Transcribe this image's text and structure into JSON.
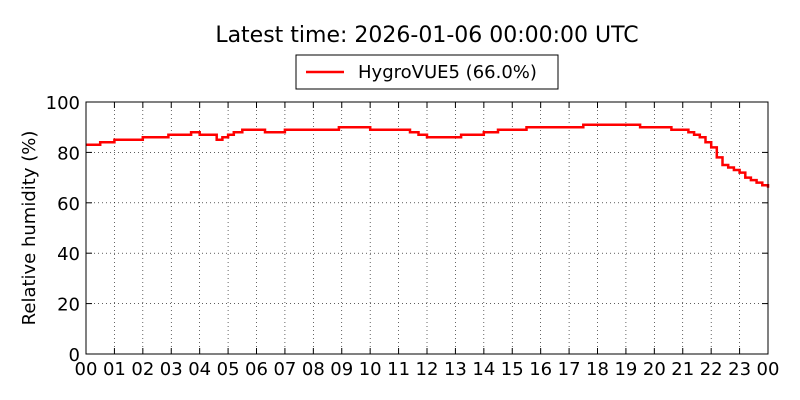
{
  "chart_data": {
    "type": "line",
    "title": "Latest time: 2026-01-06 00:00:00 UTC",
    "xlabel": "",
    "ylabel": "Relative humidity (%)",
    "xlim": [
      0,
      24
    ],
    "ylim": [
      0,
      100
    ],
    "grid": true,
    "legend_position": "top-center",
    "x_ticks": [
      0,
      1,
      2,
      3,
      4,
      5,
      6,
      7,
      8,
      9,
      10,
      11,
      12,
      13,
      14,
      15,
      16,
      17,
      18,
      19,
      20,
      21,
      22,
      23,
      24
    ],
    "x_tick_labels": [
      "00",
      "01",
      "02",
      "03",
      "04",
      "05",
      "06",
      "07",
      "08",
      "09",
      "10",
      "11",
      "12",
      "13",
      "14",
      "15",
      "16",
      "17",
      "18",
      "19",
      "20",
      "21",
      "22",
      "23",
      "00"
    ],
    "y_ticks": [
      0,
      20,
      40,
      60,
      80,
      100
    ],
    "y_tick_labels": [
      "0",
      "20",
      "40",
      "60",
      "80",
      "100"
    ],
    "series": [
      {
        "name": "HygroVUE5 (66.0%)",
        "color": "#ff0000",
        "step": true,
        "x": [
          0,
          0.3,
          0.5,
          0.8,
          1.0,
          1.3,
          1.7,
          2.0,
          2.3,
          2.6,
          2.9,
          3.1,
          3.4,
          3.7,
          4.0,
          4.3,
          4.6,
          4.8,
          5.0,
          5.2,
          5.5,
          6.0,
          6.3,
          6.7,
          7.0,
          7.5,
          8.0,
          8.5,
          8.9,
          9.5,
          10.0,
          10.5,
          11.0,
          11.4,
          11.7,
          12.0,
          12.4,
          12.8,
          13.2,
          13.6,
          14.0,
          14.5,
          15.0,
          15.5,
          16.0,
          16.5,
          17.0,
          17.5,
          18.0,
          18.5,
          19.0,
          19.5,
          20.0,
          20.3,
          20.6,
          20.9,
          21.2,
          21.4,
          21.6,
          21.8,
          22.0,
          22.2,
          22.4,
          22.6,
          22.8,
          23.0,
          23.2,
          23.4,
          23.6,
          23.8,
          24.0
        ],
        "values": [
          83,
          83,
          84,
          84,
          85,
          85,
          85,
          86,
          86,
          86,
          87,
          87,
          87,
          88,
          87,
          87,
          85,
          86,
          87,
          88,
          89,
          89,
          88,
          88,
          89,
          89,
          89,
          89,
          90,
          90,
          89,
          89,
          89,
          88,
          87,
          86,
          86,
          86,
          87,
          87,
          88,
          89,
          89,
          90,
          90,
          90,
          90,
          91,
          91,
          91,
          91,
          90,
          90,
          90,
          89,
          89,
          88,
          87,
          86,
          84,
          82,
          78,
          75,
          74,
          73,
          72,
          70,
          69,
          68,
          67,
          66
        ]
      }
    ]
  }
}
